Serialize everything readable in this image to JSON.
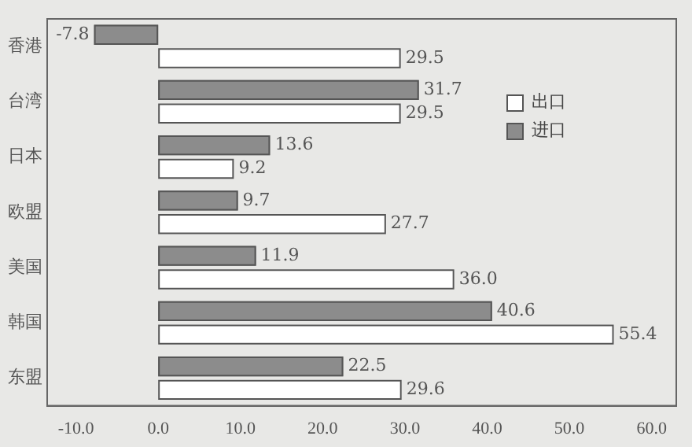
{
  "chart_data": {
    "type": "bar",
    "orientation": "horizontal",
    "categories": [
      "香港",
      "台湾",
      "日本",
      "欧盟",
      "美国",
      "韩国",
      "东盟"
    ],
    "series": [
      {
        "name": "进口",
        "color": "#8c8c8c",
        "values": [
          -7.8,
          31.7,
          13.6,
          9.7,
          11.9,
          40.6,
          22.5
        ],
        "value_labels": [
          "-7.8",
          "31.7",
          "13.6",
          "9.7",
          "11.9",
          "40.6",
          "22.5"
        ]
      },
      {
        "name": "出口",
        "color": "#ffffff",
        "values": [
          29.5,
          29.5,
          9.2,
          27.7,
          36.0,
          55.4,
          29.6
        ],
        "value_labels": [
          "29.5",
          "29.5",
          "9.2",
          "27.7",
          "36.0",
          "55.4",
          "29.6"
        ]
      }
    ],
    "xlim": [
      -13.5,
      63
    ],
    "xticks": [
      {
        "value": -10,
        "label": "-10.0"
      },
      {
        "value": 0,
        "label": "0.0"
      },
      {
        "value": 10,
        "label": "10.0"
      },
      {
        "value": 20,
        "label": "20.0"
      },
      {
        "value": 30,
        "label": "30.0"
      },
      {
        "value": 40,
        "label": "40.0"
      },
      {
        "value": 50,
        "label": "50.0"
      },
      {
        "value": 60,
        "label": "60.0"
      }
    ],
    "grid": false,
    "legend": "top right"
  }
}
